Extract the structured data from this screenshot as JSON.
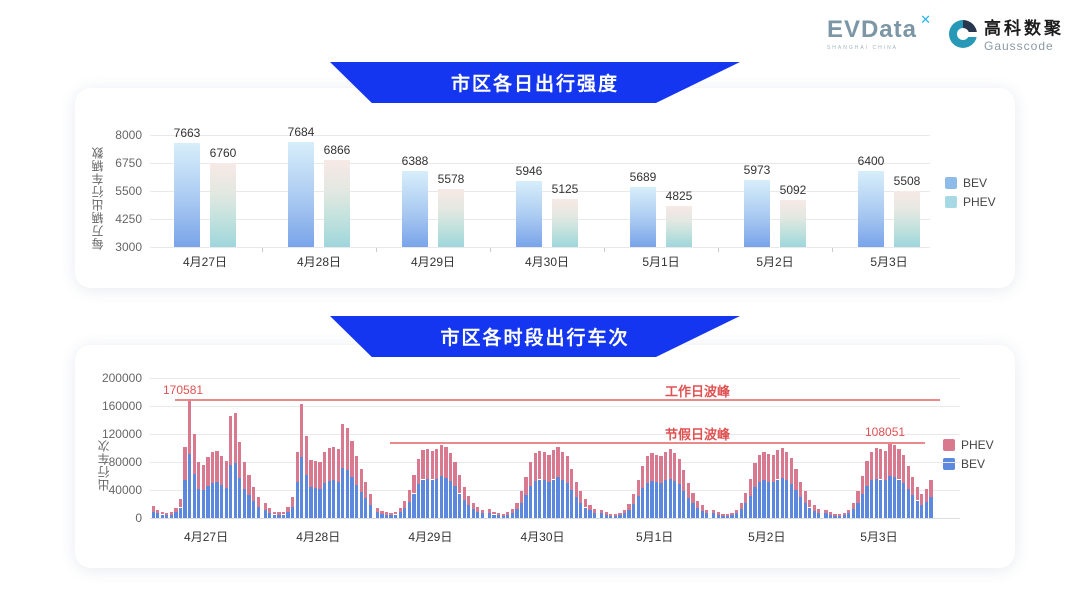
{
  "header": {
    "evdata": {
      "text": "EVData",
      "mark": "✕",
      "sub": "SHANGHAI CHINA"
    },
    "gausscode": {
      "cn": "高科数聚",
      "en": "Gausscode",
      "icon": "G"
    }
  },
  "colors": {
    "banner_blue": "#1436f0",
    "bev_gradient_top": "#d7eefa",
    "bev_gradient_bottom": "#79a4e9",
    "phev_gradient_top": "#f7e9e6",
    "phev_gradient_bottom": "#9ed6dc",
    "legend1_bev": "#8fbbe9",
    "legend1_phev": "#a6d9e3",
    "bev_stack": "#5c88de",
    "phev_stack": "#d9798f",
    "red_line": "#e98a8a",
    "red_text": "#e05252"
  },
  "chart_data": [
    {
      "type": "bar",
      "title": "市区各日出行强度",
      "ylabel": "每万辆出行车辆数",
      "ylim": [
        3000,
        8000
      ],
      "yticks": [
        3000,
        4250,
        5500,
        6750,
        8000
      ],
      "grid": true,
      "legend_position": "right",
      "categories": [
        "4月27日",
        "4月28日",
        "4月29日",
        "4月30日",
        "5月1日",
        "5月2日",
        "5月3日"
      ],
      "series": [
        {
          "name": "BEV",
          "values": [
            7663,
            7684,
            6388,
            5946,
            5689,
            5973,
            6400
          ]
        },
        {
          "name": "PHEV",
          "values": [
            6760,
            6866,
            5578,
            5125,
            4825,
            5092,
            5508
          ]
        }
      ]
    },
    {
      "type": "stacked-bar",
      "title": "市区各时段出行车次",
      "ylabel": "出行车次",
      "ylim": [
        0,
        200000
      ],
      "yticks": [
        0,
        40000,
        80000,
        120000,
        160000,
        200000
      ],
      "grid": true,
      "legend_position": "right",
      "legend_order": [
        "PHEV",
        "BEV"
      ],
      "categories": [
        "4月27日",
        "4月28日",
        "4月29日",
        "4月30日",
        "5月1日",
        "5月2日",
        "5月3日"
      ],
      "hours_per_day": 24,
      "annotations": {
        "workday_peak": {
          "label": "工作日波峰",
          "value_label": "170581",
          "value": 170581
        },
        "holiday_peak": {
          "label": "节假日波峰",
          "value_label": "108051",
          "value": 108051
        }
      },
      "series": [
        {
          "name": "BEV",
          "days": [
            [
              9000,
              6500,
              5000,
              4000,
              4500,
              8000,
              15000,
              54000,
              91000,
              63000,
              42000,
              40000,
              46000,
              50000,
              51000,
              47000,
              43000,
              76000,
              78000,
              57000,
              42000,
              33000,
              24000,
              16000
            ],
            [
              12000,
              7500,
              5000,
              4500,
              5000,
              8500,
              16000,
              51000,
              87000,
              62000,
              44000,
              43000,
              42000,
              50000,
              53000,
              54000,
              52000,
              71000,
              68000,
              58000,
              47000,
              37000,
              28000,
              18000
            ],
            [
              8500,
              6000,
              4500,
              4000,
              5000,
              8000,
              14000,
              23000,
              35000,
              48000,
              55000,
              56000,
              55000,
              56000,
              60000,
              57000,
              53000,
              46000,
              35000,
              26000,
              18000,
              12500,
              9000,
              7000
            ],
            [
              7500,
              5000,
              4000,
              3500,
              4500,
              7500,
              13000,
              22000,
              33000,
              46000,
              53000,
              55000,
              54000,
              52000,
              55000,
              58000,
              54000,
              50000,
              40000,
              30000,
              22000,
              15000,
              11000,
              7500
            ],
            [
              7000,
              4500,
              3500,
              3500,
              4000,
              7000,
              12000,
              20000,
              31000,
              43000,
              50000,
              53000,
              51000,
              50000,
              54000,
              56000,
              53000,
              48000,
              39000,
              29000,
              21000,
              14000,
              10000,
              7000
            ],
            [
              7000,
              4500,
              3500,
              3500,
              4000,
              7000,
              12500,
              21000,
              32000,
              44000,
              51000,
              54000,
              52000,
              51000,
              55000,
              57000,
              54000,
              49000,
              40000,
              30000,
              22000,
              15000,
              10500,
              7500
            ],
            [
              7000,
              4500,
              3500,
              3500,
              4000,
              7000,
              13000,
              22000,
              34000,
              46000,
              54000,
              56000,
              55000,
              54000,
              60051,
              58000,
              55000,
              50000,
              42000,
              33000,
              25000,
              19000,
              23000,
              30000
            ]
          ]
        },
        {
          "name": "PHEV",
          "days": [
            [
              8000,
              5500,
              4000,
              3000,
              3500,
              7000,
              12000,
              47000,
              79581,
              57000,
              38000,
              36000,
              41000,
              45000,
              45000,
              42000,
              39000,
              70000,
              72000,
              52000,
              38000,
              29000,
              21000,
              14000
            ],
            [
              10000,
              6500,
              4000,
              3500,
              4000,
              7500,
              14000,
              44000,
              76000,
              55000,
              39000,
              38000,
              38000,
              45000,
              47000,
              47000,
              46000,
              63000,
              60000,
              52000,
              41000,
              33000,
              24000,
              16000
            ],
            [
              6500,
              4000,
              3500,
              3000,
              4000,
              6000,
              10000,
              17000,
              27000,
              37000,
              42000,
              43000,
              41000,
              42000,
              45000,
              44000,
              40000,
              34000,
              27000,
              19000,
              14000,
              9500,
              7000,
              5000
            ],
            [
              5500,
              4000,
              3000,
              2500,
              3500,
              5500,
              9000,
              16000,
              25000,
              34000,
              40000,
              41000,
              40000,
              38000,
              42000,
              44000,
              41000,
              38000,
              30000,
              22000,
              16000,
              12000,
              8000,
              5500
            ],
            [
              5000,
              3500,
              2500,
              2500,
              3000,
              5000,
              8000,
              15000,
              24000,
              32000,
              38000,
              40000,
              39000,
              38000,
              41000,
              42000,
              40000,
              37000,
              29000,
              21000,
              15000,
              11000,
              8000,
              5000
            ],
            [
              5000,
              3500,
              2500,
              2500,
              3000,
              5000,
              8500,
              15000,
              24000,
              34000,
              39000,
              41000,
              40000,
              39000,
              42000,
              43000,
              40000,
              37000,
              30000,
              22000,
              16000,
              11000,
              7500,
              5500
            ],
            [
              5000,
              3500,
              2500,
              2500,
              3000,
              5000,
              9000,
              16000,
              26000,
              36000,
              41000,
              44000,
              43000,
              42000,
              48000,
              46000,
              44000,
              40000,
              33000,
              25000,
              19000,
              15000,
              19000,
              25000
            ]
          ]
        }
      ]
    }
  ]
}
